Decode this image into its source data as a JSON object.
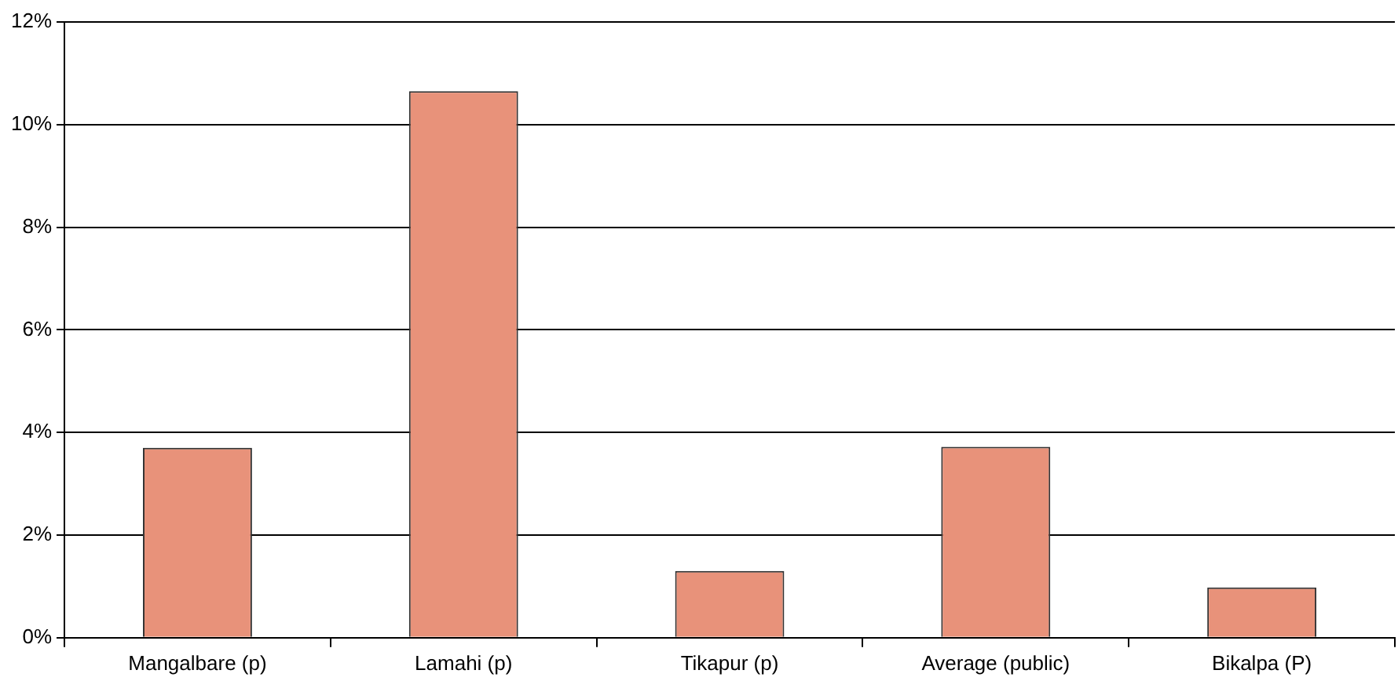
{
  "chart_data": {
    "type": "bar",
    "categories": [
      "Mangalbare (p)",
      "Lamahi (p)",
      "Tikapur (p)",
      "Average (public)",
      "Bikalpa (P)"
    ],
    "values": [
      3.7,
      10.65,
      1.3,
      3.72,
      0.98
    ],
    "color": "#e8927a",
    "ylim": [
      0,
      12
    ],
    "yticks": [
      {
        "value": 0,
        "label": "0%"
      },
      {
        "value": 2,
        "label": "2%"
      },
      {
        "value": 4,
        "label": "4%"
      },
      {
        "value": 6,
        "label": "6%"
      },
      {
        "value": 8,
        "label": "8%"
      },
      {
        "value": 10,
        "label": "10%"
      },
      {
        "value": 12,
        "label": "12%"
      }
    ],
    "grid": "y"
  }
}
